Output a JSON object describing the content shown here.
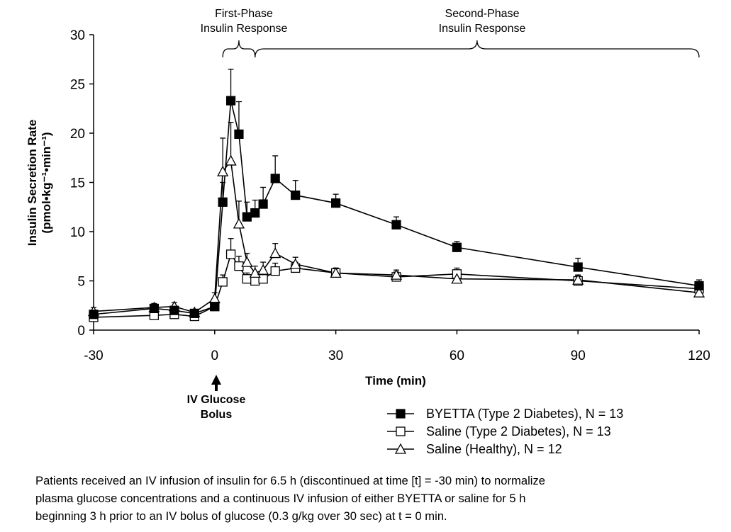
{
  "chart_data": {
    "type": "line",
    "xlabel": "Time (min)",
    "ylabel_main": "Insulin Secretion Rate",
    "ylabel_unit": "(pmol•kg⁻¹•min⁻¹)",
    "xlim": [
      -30,
      120
    ],
    "ylim": [
      0,
      30
    ],
    "x_ticks": [
      -30,
      0,
      30,
      60,
      90,
      120
    ],
    "y_ticks": [
      0,
      5,
      10,
      15,
      20,
      25,
      30
    ],
    "grid": false,
    "legend_position": "bottom-right",
    "phase_labels": [
      {
        "lines": [
          "First-Phase",
          "Insulin Response"
        ],
        "x_range": [
          2,
          10
        ]
      },
      {
        "lines": [
          "Second-Phase",
          "Insulin Response"
        ],
        "x_range": [
          10,
          120
        ]
      }
    ],
    "annotation": {
      "lines": [
        "IV Glucose",
        "Bolus"
      ],
      "x": 0
    },
    "series": [
      {
        "name": "BYETTA (Type 2 Diabetes), N = 13",
        "marker": "filled-square",
        "x": [
          -30,
          -15,
          -10,
          -5,
          0,
          2,
          4,
          6,
          8,
          10,
          12,
          15,
          20,
          30,
          45,
          60,
          90,
          120
        ],
        "y": [
          1.6,
          2.2,
          2.0,
          1.7,
          2.4,
          13.0,
          23.3,
          19.9,
          11.5,
          11.9,
          12.8,
          15.4,
          13.7,
          12.9,
          10.7,
          8.4,
          6.4,
          4.5
        ],
        "err": [
          0.4,
          0.4,
          0.4,
          0.3,
          0.5,
          2.0,
          3.2,
          3.3,
          1.5,
          1.3,
          1.7,
          2.3,
          1.5,
          0.9,
          0.8,
          0.6,
          0.9,
          0.6
        ]
      },
      {
        "name": "Saline (Type 2 Diabetes), N = 13",
        "marker": "open-square",
        "x": [
          -30,
          -15,
          -10,
          -5,
          0,
          2,
          4,
          6,
          8,
          10,
          12,
          15,
          20,
          30,
          45,
          60,
          90,
          120
        ],
        "y": [
          1.3,
          1.5,
          1.6,
          1.4,
          2.4,
          4.9,
          7.7,
          6.5,
          5.2,
          5.0,
          5.2,
          6.0,
          6.3,
          5.8,
          5.4,
          5.7,
          5.0,
          4.2
        ],
        "err": [
          0.3,
          0.3,
          0.3,
          0.3,
          0.4,
          0.7,
          1.6,
          1.0,
          0.6,
          0.5,
          0.7,
          0.8,
          0.6,
          0.5,
          0.5,
          0.6,
          0.5,
          0.4
        ]
      },
      {
        "name": "Saline (Healthy), N = 12",
        "marker": "open-triangle",
        "x": [
          -30,
          -15,
          -10,
          -5,
          0,
          2,
          4,
          6,
          8,
          10,
          12,
          15,
          20,
          30,
          45,
          60,
          90,
          120
        ],
        "y": [
          1.9,
          2.3,
          2.4,
          1.8,
          3.2,
          16.1,
          17.2,
          10.8,
          6.9,
          5.8,
          6.1,
          7.8,
          6.7,
          5.8,
          5.6,
          5.2,
          5.1,
          3.8
        ],
        "err": [
          0.4,
          0.4,
          0.4,
          0.3,
          0.6,
          3.4,
          3.9,
          2.3,
          0.9,
          0.7,
          0.8,
          1.0,
          0.7,
          0.5,
          0.5,
          0.5,
          0.5,
          0.4
        ]
      }
    ]
  },
  "caption_lines": [
    "Patients received an IV infusion of insulin for 6.5 h (discontinued at time [t] = -30 min) to normalize",
    "plasma glucose concentrations and a continuous IV infusion of either BYETTA or saline for 5 h",
    "beginning 3 h prior to an IV bolus of glucose (0.3 g/kg over 30 sec) at t = 0 min."
  ]
}
